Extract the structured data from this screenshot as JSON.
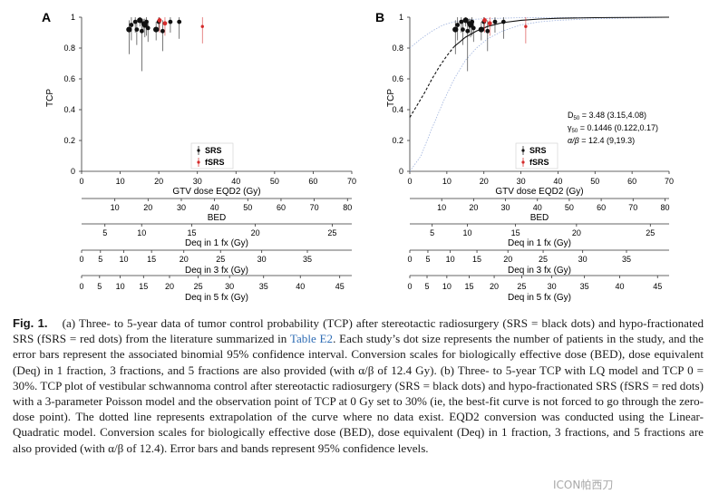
{
  "figure": {
    "panels": [
      {
        "letter": "A",
        "y_label": "TCP",
        "y_ticks": [
          "0",
          "0.2",
          "0.4",
          "0.6",
          "0.8",
          "1"
        ],
        "legend": [
          "SRS",
          "fSRS"
        ]
      },
      {
        "letter": "B",
        "y_label": "TCP",
        "y_ticks": [
          "0",
          "0.2",
          "0.4",
          "0.6",
          "0.8",
          "1"
        ],
        "legend": [
          "SRS",
          "fSRS"
        ],
        "params": {
          "d50_sym": "D",
          "d50_sub": "50",
          "d50_val": " = 3.48 (3.15,4.08)",
          "g50_sym": "γ",
          "g50_sub": "50",
          "g50_val": " = 0.1446 (0.122,0.17)",
          "ab_sym": "α/β",
          "ab_val": " = 12.4 (9,19.3)"
        }
      }
    ],
    "scales": [
      {
        "label": "GTV dose EQD2 (Gy)",
        "ticks": [
          "0",
          "10",
          "20",
          "30",
          "40",
          "50",
          "60",
          "70"
        ]
      },
      {
        "label": "BED",
        "ticks": [
          "10",
          "20",
          "30",
          "40",
          "50",
          "60",
          "70",
          "80"
        ]
      },
      {
        "label": "Deq in 1 fx (Gy)",
        "ticks": [
          "5",
          "10",
          "15",
          "20",
          "25"
        ]
      },
      {
        "label": "Deq in 3 fx (Gy)",
        "ticks": [
          "0",
          "5",
          "10",
          "15",
          "20",
          "25",
          "30",
          "35"
        ]
      },
      {
        "label": "Deq in 5 fx (Gy)",
        "ticks": [
          "0",
          "5",
          "10",
          "15",
          "20",
          "25",
          "30",
          "35",
          "40",
          "45"
        ]
      }
    ]
  },
  "chart_data": [
    {
      "type": "scatter",
      "panel": "A",
      "xlabel": "GTV dose EQD2 (Gy)",
      "ylabel": "TCP",
      "xlim": [
        0,
        70
      ],
      "ylim": [
        0,
        1
      ],
      "legend_position": "bottom-center",
      "grid": false,
      "series": [
        {
          "name": "SRS",
          "color": "#111111",
          "points": [
            {
              "x": 12.3,
              "y": 0.92,
              "lo": 0.76,
              "hi": 0.98,
              "size": 3
            },
            {
              "x": 12.9,
              "y": 0.95,
              "lo": 0.85,
              "hi": 1.0,
              "size": 2
            },
            {
              "x": 13.9,
              "y": 0.97,
              "lo": 0.9,
              "hi": 1.0,
              "size": 2
            },
            {
              "x": 14.3,
              "y": 0.92,
              "lo": 0.82,
              "hi": 0.98,
              "size": 2
            },
            {
              "x": 15.1,
              "y": 0.98,
              "lo": 0.94,
              "hi": 1.0,
              "size": 3
            },
            {
              "x": 15.6,
              "y": 0.91,
              "lo": 0.65,
              "hi": 0.99,
              "size": 2
            },
            {
              "x": 16.0,
              "y": 0.96,
              "lo": 0.9,
              "hi": 0.99,
              "size": 2
            },
            {
              "x": 16.4,
              "y": 0.95,
              "lo": 0.87,
              "hi": 0.99,
              "size": 3
            },
            {
              "x": 16.8,
              "y": 0.97,
              "lo": 0.88,
              "hi": 1.0,
              "size": 2
            },
            {
              "x": 17.2,
              "y": 0.93,
              "lo": 0.84,
              "hi": 0.98,
              "size": 2
            },
            {
              "x": 19.3,
              "y": 0.92,
              "lo": 0.85,
              "hi": 0.97,
              "size": 3
            },
            {
              "x": 20.0,
              "y": 0.97,
              "lo": 0.91,
              "hi": 1.0,
              "size": 2
            },
            {
              "x": 21.0,
              "y": 0.91,
              "lo": 0.78,
              "hi": 0.98,
              "size": 2
            },
            {
              "x": 23.0,
              "y": 0.97,
              "lo": 0.9,
              "hi": 1.0,
              "size": 2
            },
            {
              "x": 25.3,
              "y": 0.97,
              "lo": 0.86,
              "hi": 1.0,
              "size": 2
            }
          ]
        },
        {
          "name": "fSRS",
          "color": "#d42a2a",
          "points": [
            {
              "x": 20.2,
              "y": 0.98,
              "lo": 0.9,
              "hi": 1.0,
              "size": 2
            },
            {
              "x": 21.6,
              "y": 0.96,
              "lo": 0.88,
              "hi": 1.0,
              "size": 2
            },
            {
              "x": 31.3,
              "y": 0.94,
              "lo": 0.83,
              "hi": 1.0,
              "size": 1
            }
          ]
        }
      ]
    },
    {
      "type": "scatter",
      "panel": "B",
      "xlabel": "GTV dose EQD2 (Gy)",
      "ylabel": "TCP",
      "xlim": [
        0,
        70
      ],
      "ylim": [
        0,
        1
      ],
      "legend_position": "bottom-center",
      "grid": false,
      "fit": {
        "model": "3-parameter Poisson",
        "D50": 3.48,
        "gamma50": 0.1446,
        "alpha_beta": 12.4,
        "y_at_zero": 0.3,
        "extrapolated_below_x": 12,
        "curve": [
          [
            0,
            0.35
          ],
          [
            2,
            0.43
          ],
          [
            4,
            0.51
          ],
          [
            6,
            0.6
          ],
          [
            8,
            0.68
          ],
          [
            10,
            0.75
          ],
          [
            12,
            0.81
          ],
          [
            15,
            0.87
          ],
          [
            18,
            0.91
          ],
          [
            21,
            0.94
          ],
          [
            25,
            0.965
          ],
          [
            30,
            0.98
          ],
          [
            35,
            0.988
          ],
          [
            40,
            0.993
          ],
          [
            50,
            0.997
          ],
          [
            70,
            1.0
          ]
        ],
        "band_lower": [
          [
            0,
            0.0
          ],
          [
            3,
            0.1
          ],
          [
            6,
            0.28
          ],
          [
            9,
            0.45
          ],
          [
            12,
            0.6
          ],
          [
            15,
            0.72
          ],
          [
            18,
            0.8
          ],
          [
            21,
            0.86
          ],
          [
            25,
            0.91
          ],
          [
            30,
            0.95
          ],
          [
            35,
            0.97
          ],
          [
            40,
            0.98
          ],
          [
            50,
            0.99
          ],
          [
            70,
            1.0
          ]
        ],
        "band_upper": [
          [
            0,
            0.8
          ],
          [
            3,
            0.86
          ],
          [
            6,
            0.91
          ],
          [
            9,
            0.95
          ],
          [
            12,
            0.97
          ],
          [
            16,
            0.985
          ],
          [
            20,
            0.99
          ],
          [
            30,
            0.997
          ],
          [
            70,
            1.0
          ]
        ]
      },
      "series": [
        {
          "name": "SRS",
          "color": "#111111",
          "points": [
            {
              "x": 12.3,
              "y": 0.92,
              "lo": 0.76,
              "hi": 0.98,
              "size": 3
            },
            {
              "x": 12.9,
              "y": 0.95,
              "lo": 0.85,
              "hi": 1.0,
              "size": 2
            },
            {
              "x": 13.9,
              "y": 0.97,
              "lo": 0.9,
              "hi": 1.0,
              "size": 2
            },
            {
              "x": 14.3,
              "y": 0.92,
              "lo": 0.82,
              "hi": 0.98,
              "size": 2
            },
            {
              "x": 15.1,
              "y": 0.98,
              "lo": 0.94,
              "hi": 1.0,
              "size": 3
            },
            {
              "x": 15.6,
              "y": 0.91,
              "lo": 0.65,
              "hi": 0.99,
              "size": 2
            },
            {
              "x": 16.0,
              "y": 0.96,
              "lo": 0.9,
              "hi": 0.99,
              "size": 2
            },
            {
              "x": 16.4,
              "y": 0.95,
              "lo": 0.87,
              "hi": 0.99,
              "size": 3
            },
            {
              "x": 16.8,
              "y": 0.97,
              "lo": 0.88,
              "hi": 1.0,
              "size": 2
            },
            {
              "x": 17.2,
              "y": 0.93,
              "lo": 0.84,
              "hi": 0.98,
              "size": 2
            },
            {
              "x": 19.3,
              "y": 0.92,
              "lo": 0.85,
              "hi": 0.97,
              "size": 3
            },
            {
              "x": 20.0,
              "y": 0.97,
              "lo": 0.91,
              "hi": 1.0,
              "size": 2
            },
            {
              "x": 21.0,
              "y": 0.91,
              "lo": 0.78,
              "hi": 0.98,
              "size": 2
            },
            {
              "x": 23.0,
              "y": 0.97,
              "lo": 0.9,
              "hi": 1.0,
              "size": 2
            },
            {
              "x": 25.3,
              "y": 0.97,
              "lo": 0.86,
              "hi": 1.0,
              "size": 2
            }
          ]
        },
        {
          "name": "fSRS",
          "color": "#d42a2a",
          "points": [
            {
              "x": 20.2,
              "y": 0.98,
              "lo": 0.9,
              "hi": 1.0,
              "size": 2
            },
            {
              "x": 21.6,
              "y": 0.96,
              "lo": 0.88,
              "hi": 1.0,
              "size": 2
            },
            {
              "x": 31.3,
              "y": 0.94,
              "lo": 0.83,
              "hi": 1.0,
              "size": 1
            }
          ]
        }
      ]
    }
  ],
  "caption": {
    "fig_label": "Fig. 1.",
    "t1": "(a) Three- to 5-year data of tumor control probability (TCP) after stereotactic radiosurgery (SRS = black dots) and hypo-fractionated SRS (fSRS = red dots) from the literature summarized in ",
    "link": "Table E2",
    "t2": ". Each study’s dot size represents the number of patients in the study, and the error bars represent the associated binomial 95% confidence interval. Conversion scales for biologically effective dose (BED), dose equivalent (Deq) in 1 fraction, 3 fractions, and 5 fractions are also provided (with α/β of 12.4 Gy). (b) Three- to 5-year TCP with LQ model and TCP 0 = 30%. TCP plot of vestibular schwannoma control after stereotactic radiosurgery (SRS = black dots) and hypo-fractionated SRS (fSRS = red dots) with a 3-parameter Poisson model and the observation point of TCP at 0 Gy set to 30% (ie, the best-fit curve is not forced to go through the zero-dose point). The dotted line represents extrapolation of the curve where no data exist. EQD2 conversion was conducted using the Linear-Quadratic model. Conversion scales for biologically effective dose (BED), dose equivalent (Deq) in 1 fraction, 3 fractions, and 5 fractions are also provided (with α/β of 12.4). Error bars and bands represent 95% confidence levels."
  },
  "watermark": "ICON帕西刀"
}
